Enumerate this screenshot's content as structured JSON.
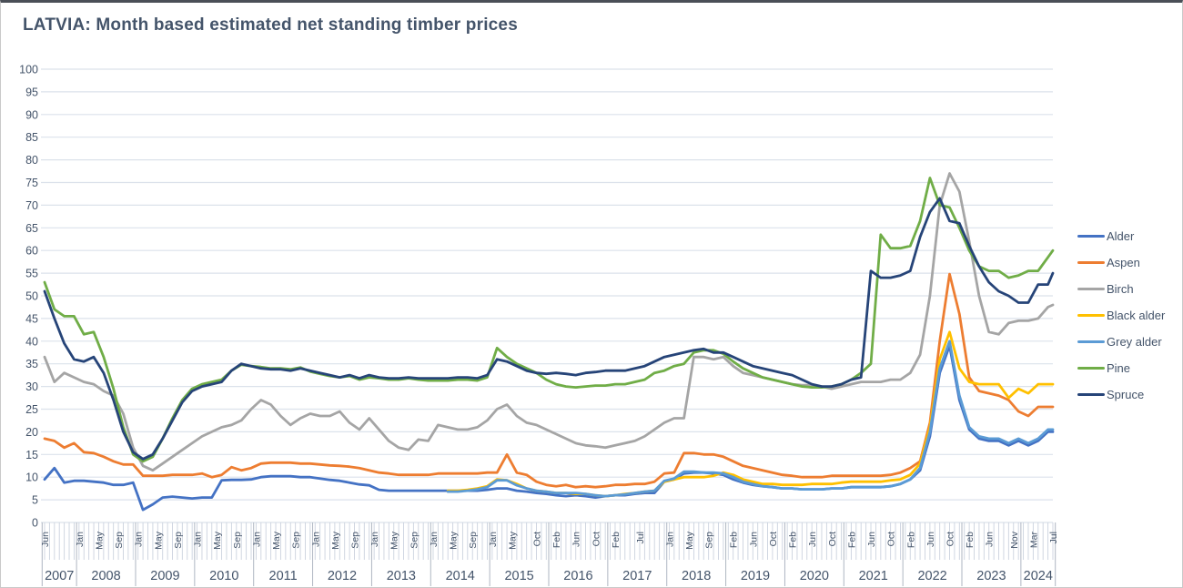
{
  "window": {
    "title": "LATVIA: Month based estimated net standing timber prices"
  },
  "colors": {
    "title_text": "#44546A",
    "axis_text": "#44546A",
    "gridline": "#DCE2EB",
    "tick": "#CBD2DE",
    "year_separator": "#AEB6C2",
    "alder": "#4472C4",
    "aspen": "#ED7D31",
    "birch": "#A5A5A5",
    "black_alder": "#FFC000",
    "grey_alder": "#5B9BD5",
    "pine": "#70AD47",
    "spruce": "#264478"
  },
  "chart_data": {
    "type": "line",
    "title": "LATVIA: Month based estimated net standing timber prices",
    "xlabel": "",
    "ylabel": "",
    "ylim": [
      0,
      100
    ],
    "y_tick_step": 5,
    "grid": true,
    "legend_position": "right",
    "x_start_month": "2007-06",
    "x_end_month": "2024-07",
    "sample_interval_months": 2,
    "x_axis_years": [
      {
        "year": "2007",
        "months": [
          "Jun"
        ]
      },
      {
        "year": "2008",
        "months": [
          "Jan",
          "May",
          "Sep"
        ]
      },
      {
        "year": "2009",
        "months": [
          "Jan",
          "May",
          "Sep"
        ]
      },
      {
        "year": "2010",
        "months": [
          "Jan",
          "May",
          "Sep"
        ]
      },
      {
        "year": "2011",
        "months": [
          "Jan",
          "May",
          "Sep"
        ]
      },
      {
        "year": "2012",
        "months": [
          "Jan",
          "May",
          "Sep"
        ]
      },
      {
        "year": "2013",
        "months": [
          "Jan",
          "May",
          "Sep"
        ]
      },
      {
        "year": "2014",
        "months": [
          "Jan",
          "May",
          "Sep"
        ]
      },
      {
        "year": "2015",
        "months": [
          "Jan",
          "May",
          "Oct"
        ]
      },
      {
        "year": "2016",
        "months": [
          "Feb",
          "Jun",
          "Oct"
        ]
      },
      {
        "year": "2017",
        "months": [
          "Feb",
          "Jul"
        ]
      },
      {
        "year": "2018",
        "months": [
          "Jan",
          "May",
          "Sep"
        ]
      },
      {
        "year": "2019",
        "months": [
          "Feb",
          "Jun",
          "Oct"
        ]
      },
      {
        "year": "2020",
        "months": [
          "Feb",
          "Jun",
          "Oct"
        ]
      },
      {
        "year": "2021",
        "months": [
          "Feb",
          "Jun",
          "Oct"
        ]
      },
      {
        "year": "2022",
        "months": [
          "Feb",
          "Jun",
          "Oct"
        ]
      },
      {
        "year": "2023",
        "months": [
          "Feb",
          "Jun",
          "Nov"
        ]
      },
      {
        "year": "2024",
        "months": [
          "Mar",
          "Jul"
        ]
      }
    ],
    "series": [
      {
        "name": "Alder",
        "color": "#4472C4",
        "start_index": 0,
        "values": [
          9.5,
          12,
          8.8,
          9.2,
          9.2,
          9,
          8.8,
          8.3,
          8.3,
          8.8,
          2.8,
          4,
          5.5,
          5.7,
          5.5,
          5.3,
          5.5,
          5.5,
          9.3,
          9.4,
          9.4,
          9.5,
          10,
          10.2,
          10.2,
          10.2,
          10,
          10,
          9.7,
          9.4,
          9.2,
          8.8,
          8.4,
          8.2,
          7.2,
          7,
          7,
          7,
          7,
          7,
          7,
          7,
          7,
          7,
          7,
          7.2,
          7.5,
          7.5,
          7,
          6.8,
          6.5,
          6.3,
          6,
          5.8,
          6,
          5.8,
          5.5,
          5.8,
          6,
          6,
          6.3,
          6.5,
          6.5,
          9,
          9.5,
          10.8,
          11,
          11,
          10.8,
          10.5,
          9.5,
          8.8,
          8.3,
          8,
          7.8,
          7.5,
          7.5,
          7.3,
          7.3,
          7.3,
          7.5,
          7.5,
          7.8,
          7.8,
          7.8,
          7.8,
          8,
          8.5,
          9.5,
          11.5,
          19,
          33,
          39,
          27,
          20.5,
          18.5,
          18,
          18,
          17,
          18,
          17,
          18,
          20,
          20
        ]
      },
      {
        "name": "Aspen",
        "color": "#ED7D31",
        "start_index": 0,
        "values": [
          18.5,
          18,
          16.5,
          17.5,
          15.5,
          15.3,
          14.5,
          13.5,
          12.8,
          12.8,
          10.3,
          10.3,
          10.3,
          10.5,
          10.5,
          10.5,
          10.8,
          10,
          10.5,
          12.2,
          11.5,
          12,
          13,
          13.2,
          13.2,
          13.2,
          13,
          13,
          12.8,
          12.6,
          12.5,
          12.3,
          12,
          11.5,
          11,
          10.8,
          10.5,
          10.5,
          10.5,
          10.5,
          10.8,
          10.8,
          10.8,
          10.8,
          10.8,
          11,
          11,
          15,
          11,
          10.5,
          9,
          8.3,
          8,
          8.3,
          7.8,
          8,
          7.8,
          8,
          8.3,
          8.3,
          8.5,
          8.5,
          9,
          10.8,
          11,
          15.3,
          15.3,
          15,
          15,
          14.5,
          13.5,
          12.5,
          12,
          11.5,
          11,
          10.5,
          10.3,
          10,
          10,
          10,
          10.3,
          10.3,
          10.3,
          10.3,
          10.3,
          10.3,
          10.5,
          11,
          12,
          13.5,
          22,
          40,
          54.8,
          46,
          32,
          29,
          28.5,
          28,
          27,
          24.5,
          23.5,
          25.5,
          25.5,
          25.5
        ]
      },
      {
        "name": "Birch",
        "color": "#A5A5A5",
        "start_index": 0,
        "values": [
          36.5,
          31,
          33,
          32,
          31,
          30.5,
          29,
          28,
          24,
          16.5,
          12.5,
          11.5,
          13,
          14.5,
          16,
          17.5,
          19,
          20,
          21,
          21.5,
          22.5,
          25,
          27,
          26,
          23.5,
          21.5,
          23,
          24,
          23.5,
          23.5,
          24.5,
          22,
          20.5,
          23,
          20.5,
          18,
          16.5,
          16,
          18.3,
          18,
          21.5,
          21,
          20.5,
          20.5,
          21,
          22.5,
          25,
          26,
          23.5,
          22,
          21.5,
          20.5,
          19.5,
          18.5,
          17.5,
          17,
          16.8,
          16.5,
          17,
          17.5,
          18,
          19,
          20.5,
          22,
          23,
          23,
          36.5,
          36.5,
          36,
          36.5,
          34.5,
          33,
          32.5,
          32,
          31.5,
          31,
          30.5,
          30.3,
          30.3,
          30,
          29.5,
          30,
          30.5,
          31,
          31,
          31,
          31.5,
          31.5,
          33,
          37,
          50,
          70,
          77,
          73,
          62,
          50,
          42,
          41.5,
          44,
          44.5,
          44.5,
          45,
          47.5,
          48
        ]
      },
      {
        "name": "Black alder",
        "color": "#FFC000",
        "start_index": 41,
        "values": [
          7,
          7,
          7.2,
          7.5,
          8,
          9.5,
          9.3,
          8.5,
          7.5,
          7,
          6.8,
          6.5,
          6.5,
          6.3,
          6.3,
          6,
          5.8,
          6,
          6.3,
          6.5,
          6.8,
          7,
          9,
          9.5,
          10,
          10,
          10,
          10.3,
          11,
          10.5,
          9.5,
          9,
          8.5,
          8.5,
          8.3,
          8.3,
          8.3,
          8.5,
          8.5,
          8.5,
          8.8,
          9,
          9,
          9,
          9,
          9.3,
          9.5,
          10.5,
          13,
          21,
          36,
          42,
          34,
          31,
          30.5,
          30.5,
          30.5,
          27.5,
          29.5,
          28.5,
          30.5,
          30.5,
          30.5
        ]
      },
      {
        "name": "Grey alder",
        "color": "#5B9BD5",
        "start_index": 41,
        "values": [
          6.8,
          6.8,
          7,
          7.3,
          7.8,
          9.3,
          9.3,
          8.2,
          7.5,
          7,
          6.8,
          6.5,
          6.5,
          6.5,
          6.3,
          6,
          5.8,
          6,
          6.2,
          6.5,
          6.8,
          7,
          9.2,
          9.7,
          11.2,
          11.2,
          11,
          11,
          10.8,
          10,
          9,
          8.5,
          8,
          7.8,
          7.5,
          7.5,
          7.3,
          7.3,
          7.3,
          7.5,
          7.5,
          7.8,
          7.8,
          7.8,
          7.8,
          8,
          8.5,
          9.5,
          12,
          20,
          34,
          40,
          28,
          21,
          19,
          18.5,
          18.5,
          17.5,
          18.5,
          17.5,
          18.5,
          20.5,
          20.5
        ]
      },
      {
        "name": "Pine",
        "color": "#70AD47",
        "start_index": 0,
        "values": [
          53,
          47,
          45.5,
          45.5,
          41.5,
          42,
          36.5,
          29.5,
          21,
          15,
          13.5,
          14.5,
          18.5,
          23,
          27,
          29.5,
          30.5,
          31,
          31.5,
          33.5,
          34.8,
          34.5,
          34.3,
          34,
          34,
          33.8,
          34.2,
          33.3,
          32.8,
          32.3,
          32,
          32.3,
          31.5,
          32,
          31.8,
          31.5,
          31.5,
          31.8,
          31.5,
          31.3,
          31.3,
          31.3,
          31.5,
          31.5,
          31.3,
          32,
          38.5,
          36.5,
          35,
          34,
          33,
          31.5,
          30.5,
          30,
          29.8,
          30,
          30.2,
          30.2,
          30.5,
          30.5,
          31,
          31.5,
          33,
          33.5,
          34.5,
          35,
          37.5,
          38,
          38,
          37.2,
          35.5,
          34,
          33,
          32,
          31.5,
          31,
          30.5,
          30,
          29.8,
          29.8,
          30,
          30.5,
          31.5,
          33,
          35,
          63.5,
          60.5,
          60.5,
          61,
          66.5,
          76,
          70,
          69.5,
          65,
          60,
          56.5,
          55.5,
          55.5,
          54,
          54.5,
          55.5,
          55.5,
          58.5,
          60
        ]
      },
      {
        "name": "Spruce",
        "color": "#264478",
        "start_index": 0,
        "values": [
          51,
          45,
          39.5,
          36,
          35.5,
          36.5,
          33,
          27,
          20,
          15.5,
          14,
          15,
          18.5,
          22.5,
          26.5,
          29,
          30,
          30.5,
          31,
          33.5,
          35,
          34.5,
          34,
          33.8,
          33.8,
          33.5,
          34,
          33.5,
          33,
          32.5,
          32,
          32.5,
          31.8,
          32.5,
          32,
          31.8,
          31.8,
          32,
          31.8,
          31.8,
          31.8,
          31.8,
          32,
          32,
          31.8,
          32.5,
          36,
          35.5,
          34.5,
          33.5,
          33,
          32.8,
          33,
          32.8,
          32.5,
          33,
          33.2,
          33.5,
          33.5,
          33.5,
          34,
          34.5,
          35.5,
          36.5,
          37,
          37.5,
          38,
          38.3,
          37.5,
          37.5,
          36.5,
          35.5,
          34.5,
          34,
          33.5,
          33,
          32.5,
          31.5,
          30.5,
          30,
          30,
          30.5,
          31.5,
          32,
          55.5,
          54,
          54,
          54.5,
          55.5,
          63,
          68.5,
          71.5,
          66.5,
          66,
          61,
          56.5,
          53,
          51,
          50,
          48.5,
          48.5,
          52.5,
          52.5,
          55
        ]
      }
    ]
  }
}
